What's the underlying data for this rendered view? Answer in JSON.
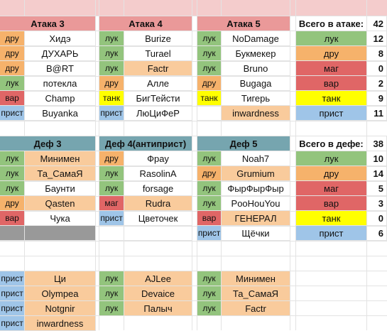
{
  "colors": {
    "attack_header": "#ea9999",
    "def_header": "#76a5af",
    "lk": "#93c47d",
    "dru": "#f6b26b",
    "var": "#e06666",
    "tank": "#ffff00",
    "prist": "#9fc5e8",
    "mag": "#e06666",
    "nick_hl": "#f9cb9c",
    "gray": "#999999",
    "topbar": "#f4cccc"
  },
  "attack_groups": [
    {
      "title": "Атака 3",
      "rows": [
        {
          "role": "дру",
          "name": "Хидэ",
          "hl": false
        },
        {
          "role": "дру",
          "name": "ДУХАРЬ",
          "hl": false
        },
        {
          "role": "дру",
          "name": "B@RT",
          "hl": false
        },
        {
          "role": "лук",
          "name": "потекла",
          "hl": false
        },
        {
          "role": "вар",
          "name": "Champ",
          "hl": false
        },
        {
          "role": "прист",
          "name": "Buyanka",
          "hl": false
        }
      ]
    },
    {
      "title": "Атака 4",
      "rows": [
        {
          "role": "лук",
          "name": "Burize",
          "hl": false
        },
        {
          "role": "лук",
          "name": "Turael",
          "hl": false
        },
        {
          "role": "лук",
          "name": "Factr",
          "hl": true
        },
        {
          "role": "дру",
          "name": "Алле",
          "hl": false
        },
        {
          "role": "танк",
          "name": "БигТейсти",
          "hl": false
        },
        {
          "role": "прист",
          "name": "ЛюЦиФеР",
          "hl": false
        }
      ]
    },
    {
      "title": "Атака 5",
      "rows": [
        {
          "role": "лук",
          "name": "NoDamage",
          "hl": false
        },
        {
          "role": "лук",
          "name": "Букмекер",
          "hl": false
        },
        {
          "role": "лук",
          "name": "Bruno",
          "hl": false
        },
        {
          "role": "дру",
          "name": "Bugaga",
          "hl": false
        },
        {
          "role": "танк",
          "name": "Тигерь",
          "hl": false
        },
        {
          "role": "",
          "name": "inwardness",
          "hl": true
        }
      ]
    }
  ],
  "attack_summary": {
    "label": "Всего в атаке:",
    "total": "42",
    "rows": [
      {
        "role": "лук",
        "count": "12",
        "color": "lk"
      },
      {
        "role": "дру",
        "count": "8",
        "color": "dru"
      },
      {
        "role": "маг",
        "count": "0",
        "color": "mag"
      },
      {
        "role": "вар",
        "count": "2",
        "color": "var"
      },
      {
        "role": "танк",
        "count": "9",
        "color": "tank"
      },
      {
        "role": "прист",
        "count": "11",
        "color": "prist"
      }
    ]
  },
  "def_groups": [
    {
      "title": "Деф 3",
      "rows": [
        {
          "role": "лук",
          "name": "Минимен",
          "hl": true
        },
        {
          "role": "лук",
          "name": "Та_СамаЯ",
          "hl": true
        },
        {
          "role": "лук",
          "name": "Баунти",
          "hl": false
        },
        {
          "role": "дру",
          "name": "Qasten",
          "hl": true
        },
        {
          "role": "вар",
          "name": "Чука",
          "hl": false
        },
        {
          "role": "",
          "name": "",
          "hl": false,
          "gray": true
        }
      ]
    },
    {
      "title": "Деф 4(антиприст)",
      "rows": [
        {
          "role": "дру",
          "name": "Фрау",
          "hl": false
        },
        {
          "role": "лук",
          "name": "RasolinA",
          "hl": false
        },
        {
          "role": "лук",
          "name": "forsage",
          "hl": false
        },
        {
          "role": "маг",
          "name": "Rudra",
          "hl": true
        },
        {
          "role": "прист",
          "name": "Цветочек",
          "hl": false
        },
        {
          "role": "",
          "name": "",
          "hl": false
        }
      ]
    },
    {
      "title": "Деф 5",
      "rows": [
        {
          "role": "лук",
          "name": "Noah7",
          "hl": false
        },
        {
          "role": "дру",
          "name": "Grumium",
          "hl": true
        },
        {
          "role": "лук",
          "name": "ФырФырФыр",
          "hl": false
        },
        {
          "role": "лук",
          "name": "PooHouYou",
          "hl": false
        },
        {
          "role": "вар",
          "name": "ГЕНЕРАЛ",
          "hl": true
        },
        {
          "role": "прист",
          "name": "Щёчки",
          "hl": false
        }
      ]
    }
  ],
  "def_summary": {
    "label": "Всего в дефе:",
    "total": "38",
    "rows": [
      {
        "role": "лук",
        "count": "10",
        "color": "lk"
      },
      {
        "role": "дру",
        "count": "14",
        "color": "dru"
      },
      {
        "role": "маг",
        "count": "5",
        "color": "mag"
      },
      {
        "role": "вар",
        "count": "3",
        "color": "var"
      },
      {
        "role": "танк",
        "count": "0",
        "color": "tank"
      },
      {
        "role": "прист",
        "count": "6",
        "color": "prist"
      }
    ]
  },
  "extra_groups": [
    {
      "rows": [
        {
          "role": "прист",
          "name": "Ци",
          "hl": true
        },
        {
          "role": "прист",
          "name": "Olympea",
          "hl": true
        },
        {
          "role": "прист",
          "name": "Notgnir",
          "hl": true
        },
        {
          "role": "прист",
          "name": "inwardness",
          "hl": true
        }
      ]
    },
    {
      "rows": [
        {
          "role": "лук",
          "name": "AJLee",
          "hl": true
        },
        {
          "role": "лук",
          "name": "Devaice",
          "hl": true
        },
        {
          "role": "лук",
          "name": "Палыч",
          "hl": true
        }
      ]
    },
    {
      "rows": [
        {
          "role": "лук",
          "name": "Минимен",
          "hl": true
        },
        {
          "role": "лук",
          "name": "Та_СамаЯ",
          "hl": true
        },
        {
          "role": "лук",
          "name": "Factr",
          "hl": true
        }
      ]
    }
  ]
}
